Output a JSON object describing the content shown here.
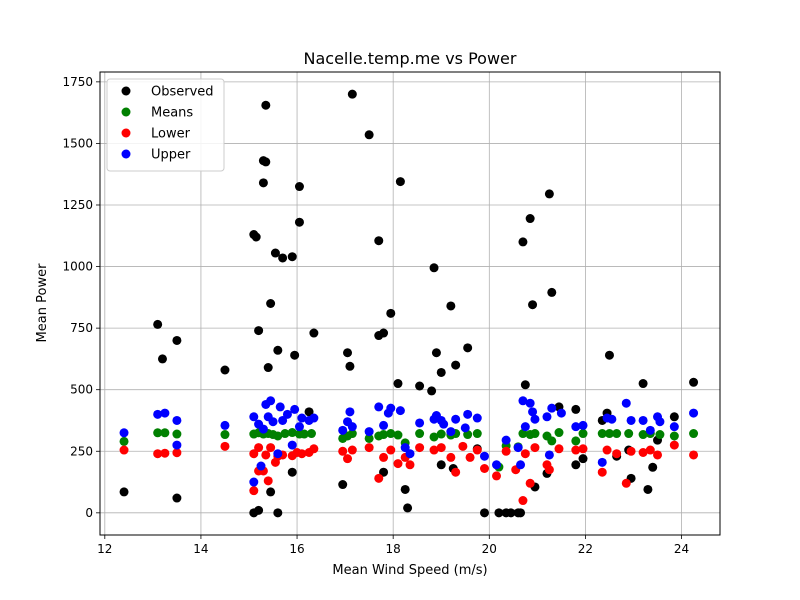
{
  "chart_data": {
    "type": "scatter",
    "title": "Nacelle.temp.me vs Power",
    "xlabel": "Mean Wind Speed (m/s)",
    "ylabel": "Mean Power",
    "xlim": [
      11.9,
      24.8
    ],
    "ylim": [
      -90,
      1790
    ],
    "xticks": [
      12,
      14,
      16,
      18,
      20,
      22,
      24
    ],
    "yticks": [
      0,
      250,
      500,
      750,
      1000,
      1250,
      1500,
      1750
    ],
    "grid": true,
    "legend_position": "top-left",
    "series": [
      {
        "name": "Observed",
        "color": "#000000",
        "points": [
          [
            12.4,
            85
          ],
          [
            13.1,
            765
          ],
          [
            13.2,
            625
          ],
          [
            13.5,
            700
          ],
          [
            13.5,
            60
          ],
          [
            14.5,
            580
          ],
          [
            15.1,
            1130
          ],
          [
            15.15,
            1120
          ],
          [
            15.2,
            740
          ],
          [
            15.2,
            10
          ],
          [
            15.1,
            0
          ],
          [
            15.3,
            1430
          ],
          [
            15.35,
            1425
          ],
          [
            15.3,
            1340
          ],
          [
            15.35,
            1655
          ],
          [
            15.4,
            590
          ],
          [
            15.45,
            850
          ],
          [
            15.45,
            85
          ],
          [
            15.55,
            1055
          ],
          [
            15.6,
            660
          ],
          [
            15.6,
            0
          ],
          [
            15.7,
            1035
          ],
          [
            15.9,
            1040
          ],
          [
            15.95,
            640
          ],
          [
            15.9,
            165
          ],
          [
            16.05,
            1325
          ],
          [
            16.05,
            1180
          ],
          [
            16.25,
            410
          ],
          [
            16.35,
            730
          ],
          [
            16.95,
            115
          ],
          [
            17.05,
            650
          ],
          [
            17.1,
            595
          ],
          [
            17.15,
            1700
          ],
          [
            17.5,
            1535
          ],
          [
            17.7,
            1105
          ],
          [
            17.7,
            720
          ],
          [
            17.8,
            730
          ],
          [
            17.8,
            165
          ],
          [
            17.95,
            810
          ],
          [
            18.1,
            525
          ],
          [
            18.15,
            1345
          ],
          [
            18.25,
            95
          ],
          [
            18.3,
            20
          ],
          [
            18.55,
            515
          ],
          [
            18.8,
            495
          ],
          [
            18.85,
            995
          ],
          [
            18.9,
            650
          ],
          [
            19.0,
            570
          ],
          [
            19.0,
            195
          ],
          [
            19.2,
            840
          ],
          [
            19.25,
            180
          ],
          [
            19.3,
            600
          ],
          [
            19.55,
            670
          ],
          [
            19.75,
            260
          ],
          [
            19.9,
            0
          ],
          [
            20.2,
            0
          ],
          [
            20.35,
            0
          ],
          [
            20.45,
            0
          ],
          [
            20.6,
            0
          ],
          [
            20.65,
            0
          ],
          [
            20.7,
            1100
          ],
          [
            20.75,
            520
          ],
          [
            20.85,
            1195
          ],
          [
            20.9,
            845
          ],
          [
            20.95,
            105
          ],
          [
            21.25,
            1295
          ],
          [
            21.3,
            895
          ],
          [
            21.2,
            160
          ],
          [
            21.45,
            430
          ],
          [
            21.8,
            420
          ],
          [
            21.8,
            195
          ],
          [
            21.95,
            220
          ],
          [
            22.35,
            375
          ],
          [
            22.45,
            405
          ],
          [
            22.5,
            640
          ],
          [
            22.65,
            230
          ],
          [
            22.9,
            255
          ],
          [
            22.95,
            140
          ],
          [
            23.2,
            525
          ],
          [
            23.3,
            95
          ],
          [
            23.4,
            185
          ],
          [
            23.5,
            295
          ],
          [
            23.85,
            390
          ],
          [
            24.25,
            530
          ]
        ]
      },
      {
        "name": "Means",
        "color": "#008000",
        "points": [
          [
            12.4,
            290
          ],
          [
            13.1,
            325
          ],
          [
            13.25,
            325
          ],
          [
            13.5,
            320
          ],
          [
            14.5,
            318
          ],
          [
            15.1,
            320
          ],
          [
            15.2,
            325
          ],
          [
            15.3,
            320
          ],
          [
            15.4,
            322
          ],
          [
            15.5,
            318
          ],
          [
            15.6,
            312
          ],
          [
            15.75,
            322
          ],
          [
            15.9,
            326
          ],
          [
            16.05,
            320
          ],
          [
            16.15,
            320
          ],
          [
            16.3,
            322
          ],
          [
            16.95,
            302
          ],
          [
            17.05,
            312
          ],
          [
            17.15,
            322
          ],
          [
            17.5,
            302
          ],
          [
            17.7,
            312
          ],
          [
            17.8,
            318
          ],
          [
            17.95,
            322
          ],
          [
            18.1,
            316
          ],
          [
            18.25,
            284
          ],
          [
            18.55,
            322
          ],
          [
            18.85,
            308
          ],
          [
            19.0,
            320
          ],
          [
            19.2,
            316
          ],
          [
            19.3,
            322
          ],
          [
            19.55,
            318
          ],
          [
            19.75,
            322
          ],
          [
            20.2,
            186
          ],
          [
            20.35,
            272
          ],
          [
            20.6,
            268
          ],
          [
            20.7,
            322
          ],
          [
            20.85,
            318
          ],
          [
            20.95,
            322
          ],
          [
            21.2,
            312
          ],
          [
            21.3,
            292
          ],
          [
            21.45,
            326
          ],
          [
            21.8,
            292
          ],
          [
            21.95,
            322
          ],
          [
            22.35,
            322
          ],
          [
            22.5,
            322
          ],
          [
            22.65,
            322
          ],
          [
            22.9,
            322
          ],
          [
            23.2,
            318
          ],
          [
            23.35,
            322
          ],
          [
            23.55,
            318
          ],
          [
            23.85,
            312
          ],
          [
            24.25,
            322
          ]
        ]
      },
      {
        "name": "Lower",
        "color": "#ff0000",
        "points": [
          [
            12.4,
            255
          ],
          [
            13.1,
            240
          ],
          [
            13.25,
            242
          ],
          [
            13.5,
            244
          ],
          [
            14.5,
            270
          ],
          [
            15.1,
            90
          ],
          [
            15.1,
            240
          ],
          [
            15.2,
            170
          ],
          [
            15.2,
            265
          ],
          [
            15.3,
            170
          ],
          [
            15.35,
            235
          ],
          [
            15.4,
            130
          ],
          [
            15.45,
            265
          ],
          [
            15.55,
            205
          ],
          [
            15.6,
            230
          ],
          [
            15.7,
            235
          ],
          [
            15.9,
            232
          ],
          [
            16.0,
            245
          ],
          [
            16.1,
            240
          ],
          [
            16.25,
            245
          ],
          [
            16.35,
            260
          ],
          [
            16.95,
            250
          ],
          [
            17.05,
            220
          ],
          [
            17.15,
            255
          ],
          [
            17.5,
            265
          ],
          [
            17.7,
            140
          ],
          [
            17.8,
            225
          ],
          [
            17.95,
            255
          ],
          [
            18.1,
            200
          ],
          [
            18.25,
            225
          ],
          [
            18.35,
            195
          ],
          [
            18.55,
            265
          ],
          [
            18.85,
            255
          ],
          [
            19.0,
            265
          ],
          [
            19.2,
            225
          ],
          [
            19.3,
            165
          ],
          [
            19.45,
            270
          ],
          [
            19.6,
            225
          ],
          [
            19.75,
            255
          ],
          [
            19.9,
            180
          ],
          [
            20.15,
            150
          ],
          [
            20.35,
            250
          ],
          [
            20.55,
            175
          ],
          [
            20.7,
            50
          ],
          [
            20.75,
            240
          ],
          [
            20.85,
            120
          ],
          [
            20.95,
            265
          ],
          [
            21.2,
            195
          ],
          [
            21.25,
            175
          ],
          [
            21.45,
            260
          ],
          [
            21.8,
            255
          ],
          [
            21.95,
            260
          ],
          [
            22.35,
            165
          ],
          [
            22.45,
            255
          ],
          [
            22.65,
            240
          ],
          [
            22.85,
            120
          ],
          [
            22.95,
            250
          ],
          [
            23.2,
            245
          ],
          [
            23.35,
            255
          ],
          [
            23.5,
            235
          ],
          [
            23.85,
            275
          ],
          [
            24.25,
            235
          ]
        ]
      },
      {
        "name": "Upper",
        "color": "#0000ff",
        "points": [
          [
            12.4,
            325
          ],
          [
            13.1,
            400
          ],
          [
            13.25,
            405
          ],
          [
            13.5,
            275
          ],
          [
            13.5,
            375
          ],
          [
            14.5,
            355
          ],
          [
            15.1,
            125
          ],
          [
            15.1,
            390
          ],
          [
            15.2,
            360
          ],
          [
            15.25,
            190
          ],
          [
            15.3,
            340
          ],
          [
            15.35,
            440
          ],
          [
            15.4,
            390
          ],
          [
            15.45,
            455
          ],
          [
            15.5,
            370
          ],
          [
            15.6,
            240
          ],
          [
            15.65,
            430
          ],
          [
            15.7,
            375
          ],
          [
            15.8,
            400
          ],
          [
            15.9,
            275
          ],
          [
            15.95,
            420
          ],
          [
            16.05,
            350
          ],
          [
            16.1,
            385
          ],
          [
            16.25,
            375
          ],
          [
            16.35,
            385
          ],
          [
            16.95,
            335
          ],
          [
            17.05,
            370
          ],
          [
            17.1,
            410
          ],
          [
            17.15,
            350
          ],
          [
            17.5,
            330
          ],
          [
            17.7,
            430
          ],
          [
            17.8,
            355
          ],
          [
            17.9,
            405
          ],
          [
            17.95,
            425
          ],
          [
            18.15,
            415
          ],
          [
            18.25,
            265
          ],
          [
            18.35,
            240
          ],
          [
            18.55,
            365
          ],
          [
            18.85,
            380
          ],
          [
            18.9,
            395
          ],
          [
            19.0,
            375
          ],
          [
            19.05,
            360
          ],
          [
            19.2,
            330
          ],
          [
            19.3,
            380
          ],
          [
            19.5,
            345
          ],
          [
            19.55,
            400
          ],
          [
            19.75,
            385
          ],
          [
            19.9,
            230
          ],
          [
            20.15,
            195
          ],
          [
            20.35,
            295
          ],
          [
            20.6,
            265
          ],
          [
            20.65,
            195
          ],
          [
            20.7,
            455
          ],
          [
            20.75,
            350
          ],
          [
            20.85,
            445
          ],
          [
            20.9,
            410
          ],
          [
            20.95,
            380
          ],
          [
            21.2,
            390
          ],
          [
            21.25,
            235
          ],
          [
            21.3,
            425
          ],
          [
            21.5,
            405
          ],
          [
            21.8,
            350
          ],
          [
            21.95,
            355
          ],
          [
            22.35,
            205
          ],
          [
            22.45,
            385
          ],
          [
            22.55,
            380
          ],
          [
            22.85,
            445
          ],
          [
            22.95,
            375
          ],
          [
            23.2,
            375
          ],
          [
            23.35,
            335
          ],
          [
            23.5,
            390
          ],
          [
            23.55,
            370
          ],
          [
            23.85,
            350
          ],
          [
            24.25,
            405
          ]
        ]
      }
    ]
  }
}
